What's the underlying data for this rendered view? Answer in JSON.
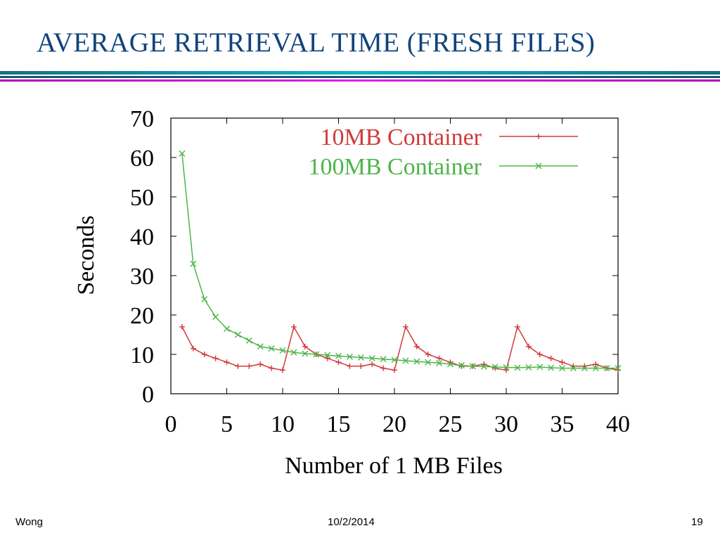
{
  "slide": {
    "title": "AVERAGE RETRIEVAL TIME (FRESH FILES)",
    "footer_left": "Wong",
    "footer_center": "10/2/2014",
    "footer_right": "19"
  },
  "chart_data": {
    "type": "line",
    "title": "",
    "xlabel": "Number of 1 MB Files",
    "ylabel": "Seconds",
    "xlim": [
      0,
      40
    ],
    "ylim": [
      0,
      70
    ],
    "xticks": [
      0,
      5,
      10,
      15,
      20,
      25,
      30,
      35,
      40
    ],
    "yticks": [
      0,
      10,
      20,
      30,
      40,
      50,
      60,
      70
    ],
    "grid": false,
    "legend_position": "top-right",
    "series": [
      {
        "name": "10MB Container",
        "color": "#d03a3a",
        "marker": "plus",
        "x": [
          1,
          2,
          3,
          4,
          5,
          6,
          7,
          8,
          9,
          10,
          11,
          12,
          13,
          14,
          15,
          16,
          17,
          18,
          19,
          20,
          21,
          22,
          23,
          24,
          25,
          26,
          27,
          28,
          29,
          30,
          31,
          32,
          33,
          34,
          35,
          36,
          37,
          38,
          39,
          40
        ],
        "y": [
          17,
          11.5,
          10,
          9,
          8,
          7,
          7,
          7.5,
          6.5,
          6,
          17,
          12,
          10,
          9,
          8,
          7,
          7,
          7.5,
          6.5,
          6,
          17,
          12,
          10,
          9,
          8,
          7,
          7,
          7.5,
          6.5,
          6,
          17,
          12,
          10,
          9,
          8,
          7,
          7,
          7.5,
          6.5,
          6
        ]
      },
      {
        "name": "100MB Container",
        "color": "#4cb548",
        "marker": "cross",
        "x": [
          1,
          2,
          3,
          4,
          5,
          6,
          7,
          8,
          9,
          10,
          11,
          12,
          13,
          14,
          15,
          16,
          17,
          18,
          19,
          20,
          21,
          22,
          23,
          24,
          25,
          26,
          27,
          28,
          29,
          30,
          31,
          32,
          33,
          34,
          35,
          36,
          37,
          38,
          39,
          40
        ],
        "y": [
          61,
          33,
          24,
          19.5,
          16.5,
          15,
          13.5,
          12,
          11.5,
          11,
          10.5,
          10.2,
          10,
          9.8,
          9.6,
          9.4,
          9.2,
          9,
          8.8,
          8.6,
          8.4,
          8.2,
          8,
          7.8,
          7.5,
          7.2,
          7,
          6.9,
          6.8,
          6.7,
          6.6,
          6.7,
          6.8,
          6.6,
          6.5,
          6.5,
          6.5,
          6.5,
          6.5,
          6.5
        ]
      }
    ]
  }
}
